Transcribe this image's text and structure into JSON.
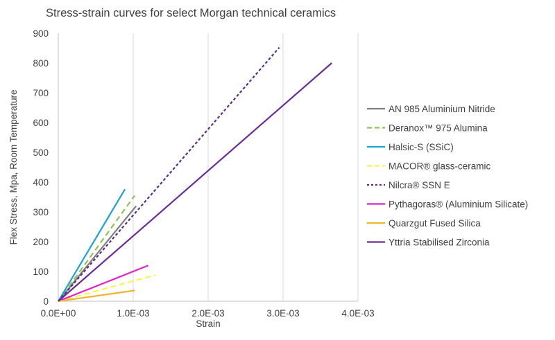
{
  "chart_data": {
    "type": "line",
    "title": "Stress-strain curves for select Morgan technical ceramics",
    "xlabel": "Strain",
    "ylabel": "Flex Stress, Mpa, Room Temperature",
    "xlim": [
      0,
      0.004
    ],
    "ylim": [
      0,
      900
    ],
    "x_ticks": [
      "0.0E+00",
      "1.0E-03",
      "2.0E-03",
      "3.0E-03",
      "4.0E-03"
    ],
    "y_ticks": [
      "0",
      "100",
      "200",
      "300",
      "400",
      "500",
      "600",
      "700",
      "800",
      "900"
    ],
    "grid": "vertical",
    "legend_position": "right",
    "series": [
      {
        "name": "AN 985 Aluminium Nitride",
        "color": "#7f7f7f",
        "dash": "solid",
        "x": [
          0,
          0.00104
        ],
        "y": [
          0,
          320
        ]
      },
      {
        "name": "Deranox™ 975 Alumina",
        "color": "#8fc44e",
        "dash": "dashed",
        "x": [
          0,
          0.00102
        ],
        "y": [
          0,
          355
        ]
      },
      {
        "name": "Halsic-S  (SSiC)",
        "color": "#1aa3d8",
        "dash": "solid",
        "x": [
          0,
          0.00089
        ],
        "y": [
          0,
          376
        ]
      },
      {
        "name": "MACOR® glass-ceramic",
        "color": "#f5f542",
        "dash": "dashed",
        "x": [
          0,
          0.0013
        ],
        "y": [
          0,
          88
        ]
      },
      {
        "name": "Nilcra® SSN E",
        "color": "#5b2d8a",
        "dash": "dotted",
        "x": [
          0,
          0.00295
        ],
        "y": [
          0,
          852
        ]
      },
      {
        "name": "Pythagoras® (Aluminium Silicate)",
        "color": "#e020c8",
        "dash": "solid",
        "x": [
          0,
          0.0012
        ],
        "y": [
          0,
          120
        ]
      },
      {
        "name": "Quarzgut Fused Silica",
        "color": "#f0b429",
        "dash": "solid",
        "x": [
          0,
          0.00102
        ],
        "y": [
          0,
          36
        ]
      },
      {
        "name": "Yttria Stabilised Zirconia",
        "color": "#6a2a9a",
        "dash": "solid",
        "x": [
          0,
          0.00365
        ],
        "y": [
          0,
          800
        ]
      }
    ]
  }
}
